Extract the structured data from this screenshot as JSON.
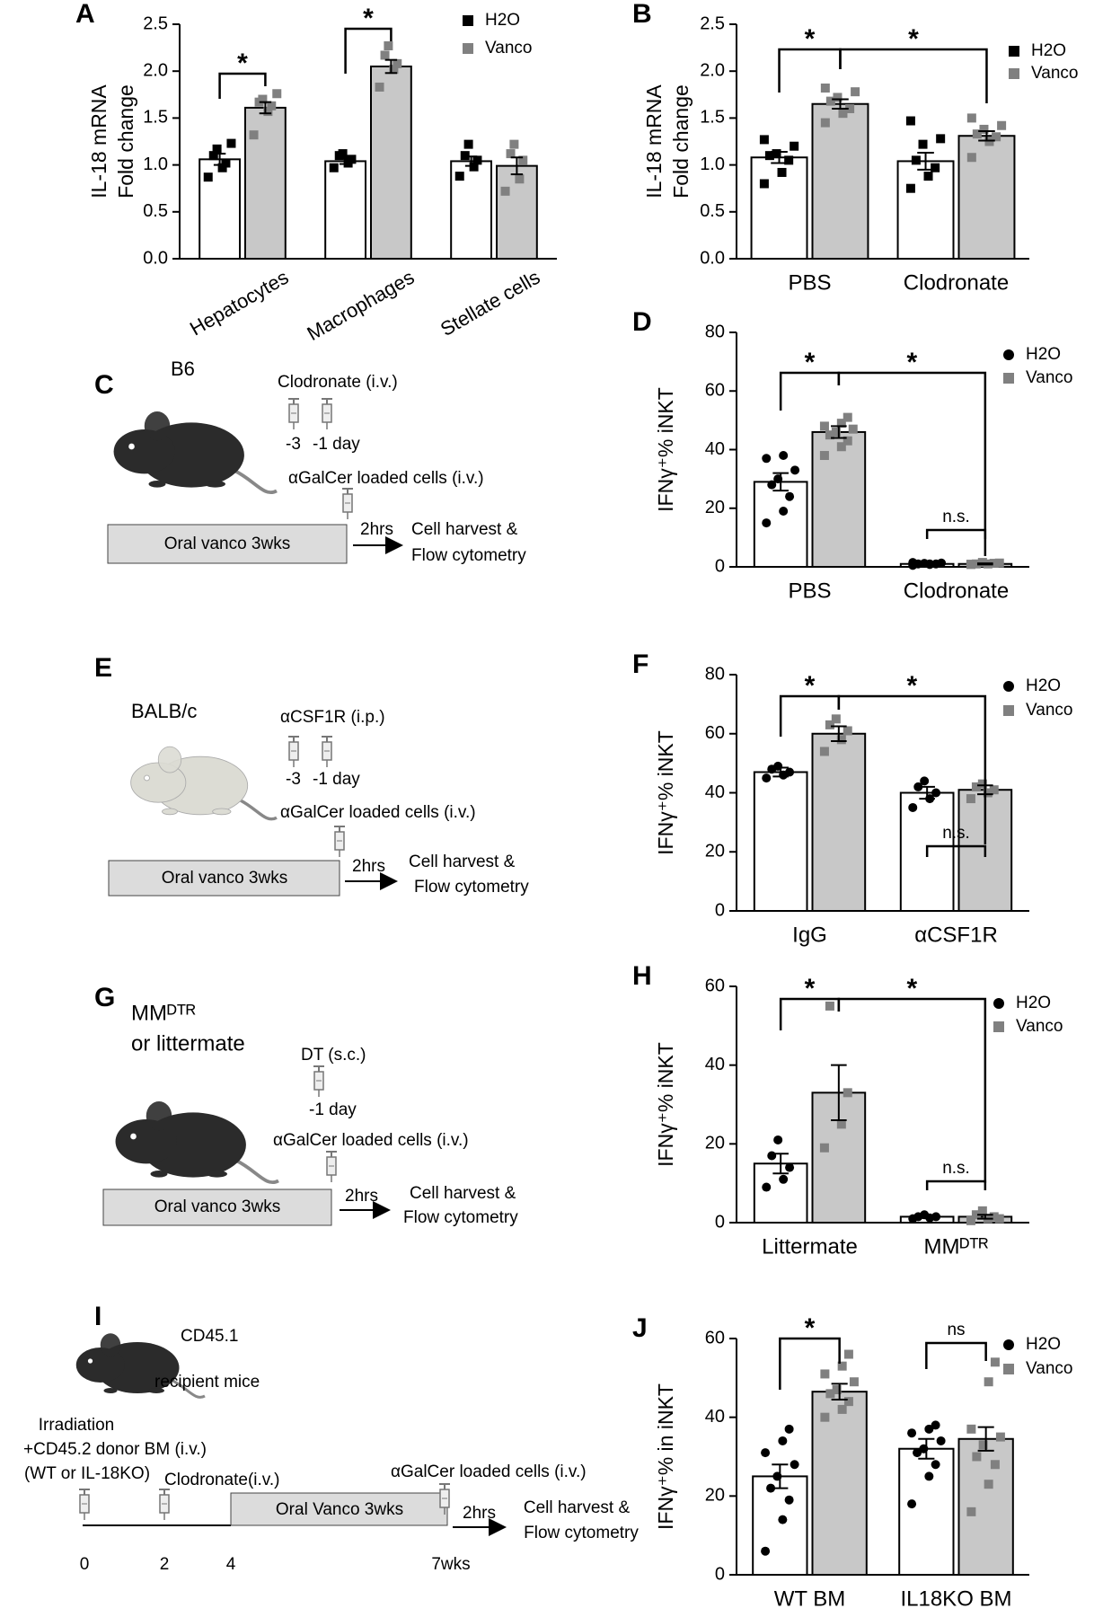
{
  "chart_data": [
    {
      "type": "bar",
      "panel": "A",
      "ylabel": [
        "IL-18 mRNA",
        "Fold change"
      ],
      "categories": [
        "Hepatocytes",
        "Macrophages",
        "Stellate cells"
      ],
      "series": [
        {
          "name": "H2O",
          "color": "#000000",
          "bar_color": "#ffffff",
          "marker": "square",
          "values": [
            1.06,
            1.04,
            1.04
          ],
          "errors": [
            0.06,
            0.03,
            0.05
          ],
          "points": [
            [
              0.87,
              0.97,
              1.02,
              1.1,
              1.17,
              1.23
            ],
            [
              0.97,
              1.02,
              1.06,
              1.1,
              1.12
            ],
            [
              0.88,
              0.98,
              1.05,
              1.1,
              1.22
            ]
          ]
        },
        {
          "name": "Vanco",
          "color": "#808080",
          "bar_color": "#c8c8c8",
          "marker": "square",
          "values": [
            1.61,
            2.05,
            0.99
          ],
          "errors": [
            0.06,
            0.07,
            0.09
          ],
          "points": [
            [
              1.32,
              1.57,
              1.63,
              1.67,
              1.7,
              1.76
            ],
            [
              1.83,
              2.02,
              2.08,
              2.17,
              2.27
            ],
            [
              0.72,
              0.85,
              1.05,
              1.12,
              1.22
            ]
          ]
        }
      ],
      "ylim": [
        0,
        2.5
      ],
      "yticks": [
        {
          "value": 0,
          "label": "0.0"
        },
        0.5,
        {
          "value": 1,
          "label": "1.0"
        },
        1.5,
        {
          "value": 2,
          "label": "2.0"
        },
        2.5
      ],
      "annotations": [
        "*",
        "*"
      ],
      "legend": "top-right"
    },
    {
      "type": "bar",
      "panel": "B",
      "ylabel": [
        "IL-18 mRNA",
        "Fold change"
      ],
      "categories": [
        "PBS",
        "Clodronate"
      ],
      "series": [
        {
          "name": "H2O",
          "color": "#000000",
          "bar_color": "#ffffff",
          "marker": "square",
          "values": [
            1.08,
            1.04
          ],
          "errors": [
            0.06,
            0.09
          ],
          "points": [
            [
              0.8,
              0.92,
              1.05,
              1.1,
              1.12,
              1.2,
              1.27
            ],
            [
              0.75,
              0.88,
              0.97,
              1.05,
              1.22,
              1.28,
              1.47
            ]
          ]
        },
        {
          "name": "Vanco",
          "color": "#808080",
          "bar_color": "#c8c8c8",
          "marker": "square",
          "values": [
            1.65,
            1.31
          ],
          "errors": [
            0.05,
            0.05
          ],
          "points": [
            [
              1.45,
              1.55,
              1.6,
              1.68,
              1.72,
              1.78,
              1.82
            ],
            [
              1.08,
              1.25,
              1.3,
              1.33,
              1.38,
              1.42,
              1.5
            ]
          ]
        }
      ],
      "ylim": [
        0,
        2.5
      ],
      "yticks": [
        {
          "value": 0,
          "label": "0.0"
        },
        0.5,
        {
          "value": 1,
          "label": "1.0"
        },
        1.5,
        {
          "value": 2,
          "label": "2.0"
        },
        2.5
      ],
      "annotations": [
        "*",
        "*"
      ],
      "legend": "top-right"
    },
    {
      "type": "bar",
      "panel": "D",
      "ylabel": [
        "IFNγ⁺% iNKT"
      ],
      "categories": [
        "PBS",
        "Clodronate"
      ],
      "series": [
        {
          "name": "H2O",
          "color": "#000000",
          "bar_color": "#ffffff",
          "marker": "circle",
          "values": [
            29,
            1
          ],
          "errors": [
            3,
            0.2
          ],
          "points": [
            [
              15,
              19,
              24,
              28,
              30,
              33,
              37,
              38
            ],
            [
              0.5,
              0.8,
              1,
              1,
              1.2,
              1.3,
              1.5,
              1
            ]
          ]
        },
        {
          "name": "Vanco",
          "color": "#808080",
          "bar_color": "#c8c8c8",
          "marker": "square",
          "values": [
            46,
            1
          ],
          "errors": [
            2,
            0.2
          ],
          "points": [
            [
              38,
              41,
              43,
              45,
              46,
              47,
              48,
              49,
              51
            ],
            [
              0.8,
              1,
              1.2,
              1,
              1.5,
              1.3,
              0.9
            ]
          ]
        }
      ],
      "ylim": [
        0,
        80
      ],
      "yticks": [
        0,
        20,
        40,
        60,
        80
      ],
      "annotations": [
        "*",
        "*",
        "n.s."
      ],
      "legend": "top-right"
    },
    {
      "type": "bar",
      "panel": "F",
      "ylabel": [
        "IFNγ⁺% iNKT"
      ],
      "categories": [
        "IgG",
        "αCSF1R"
      ],
      "series": [
        {
          "name": "H2O",
          "color": "#000000",
          "bar_color": "#ffffff",
          "marker": "circle",
          "values": [
            47,
            40
          ],
          "errors": [
            1.5,
            2
          ],
          "points": [
            [
              45,
              46,
              47,
              48,
              49
            ],
            [
              35,
              38,
              40,
              42,
              44
            ]
          ]
        },
        {
          "name": "Vanco",
          "color": "#808080",
          "bar_color": "#c8c8c8",
          "marker": "square",
          "values": [
            60,
            41
          ],
          "errors": [
            2.5,
            1.5
          ],
          "points": [
            [
              54,
              58,
              61,
              63,
              65
            ],
            [
              38,
              40,
              41,
              42,
              43
            ]
          ]
        }
      ],
      "ylim": [
        0,
        80
      ],
      "yticks": [
        0,
        20,
        40,
        60,
        80
      ],
      "annotations": [
        "*",
        "*",
        "n.s."
      ],
      "legend": "top-right"
    },
    {
      "type": "bar",
      "panel": "H",
      "ylabel": [
        "IFNγ⁺% iNKT"
      ],
      "categories": [
        "Littermate",
        "MMᴰᵀᴿ"
      ],
      "series": [
        {
          "name": "H2O",
          "color": "#000000",
          "bar_color": "#ffffff",
          "marker": "circle",
          "values": [
            15,
            1.5
          ],
          "errors": [
            2.5,
            0.3
          ],
          "points": [
            [
              9,
              11,
              14,
              17,
              21
            ],
            [
              1,
              1.2,
              1.5,
              1.5,
              2
            ]
          ]
        },
        {
          "name": "Vanco",
          "color": "#808080",
          "bar_color": "#c8c8c8",
          "marker": "square",
          "values": [
            33,
            1.5
          ],
          "errors": [
            7,
            0.5
          ],
          "points": [
            [
              19,
              25,
              33,
              55
            ],
            [
              0.5,
              1,
              1.5,
              2,
              3,
              1
            ]
          ]
        }
      ],
      "ylim": [
        0,
        60
      ],
      "yticks": [
        0,
        20,
        40,
        60
      ],
      "annotations": [
        "*",
        "*",
        "n.s."
      ],
      "legend": "top-right"
    },
    {
      "type": "bar",
      "panel": "J",
      "ylabel": [
        "IFNγ⁺% in iNKT"
      ],
      "categories": [
        "WT BM",
        "IL18KO BM"
      ],
      "series": [
        {
          "name": "H2O",
          "color": "#000000",
          "bar_color": "#ffffff",
          "marker": "circle",
          "values": [
            25,
            32
          ],
          "errors": [
            3,
            2.5
          ],
          "points": [
            [
              6,
              14,
              19,
              22,
              25,
              28,
              31,
              34,
              37
            ],
            [
              18,
              25,
              28,
              31,
              32,
              34,
              36,
              37,
              38
            ]
          ]
        },
        {
          "name": "Vanco",
          "color": "#808080",
          "bar_color": "#c8c8c8",
          "marker": "square",
          "values": [
            46.5,
            34.5
          ],
          "errors": [
            2,
            3
          ],
          "points": [
            [
              40,
              42,
              44,
              46,
              47,
              49,
              51,
              53,
              56
            ],
            [
              16,
              23,
              28,
              30,
              33,
              35,
              37,
              49,
              54
            ]
          ]
        }
      ],
      "ylim": [
        0,
        60
      ],
      "yticks": [
        0,
        20,
        40,
        60
      ],
      "annotations": [
        "*",
        "ns"
      ],
      "legend": "top-right"
    }
  ],
  "diagrams": [
    {
      "panel": "C",
      "strain": "B6",
      "treatment": "Clodronate (i.v.)",
      "day_a": "-3",
      "day_b": "-1 day",
      "injection": "αGalCer loaded cells (i.v.)",
      "box": "Oral vanco 3wks",
      "wait": "2hrs",
      "readout_1": "Cell harvest &",
      "readout_2": "Flow cytometry"
    },
    {
      "panel": "E",
      "strain": "BALB/c",
      "treatment": "αCSF1R (i.p.)",
      "day_a": "-3",
      "day_b": "-1 day",
      "injection": "αGalCer loaded cells (i.v.)",
      "box": "Oral vanco 3wks",
      "wait": "2hrs",
      "readout_1": "Cell harvest &",
      "readout_2": "Flow cytometry"
    },
    {
      "panel": "G",
      "strain": "MMᴰᵀᴿ",
      "strain_2": "or littermate",
      "treatment": "DT (s.c.)",
      "day_b": "-1 day",
      "injection": "αGalCer loaded cells (i.v.)",
      "box": "Oral vanco 3wks",
      "wait": "2hrs",
      "readout_1": "Cell harvest &",
      "readout_2": "Flow cytometry"
    },
    {
      "panel": "I",
      "recipient_1": "CD45.1",
      "recipient_2": "recipient mice",
      "step_1": "Irradiation",
      "step_2": "+CD45.2 donor BM (i.v.)",
      "step_3": "(WT or IL-18KO)",
      "treatment": "Clodronate(i.v.)",
      "box": "Oral Vanco 3wks",
      "injection": "αGalCer loaded cells (i.v.)",
      "wait": "2hrs",
      "readout_1": "Cell harvest &",
      "readout_2": "Flow cytometry",
      "t0": "0",
      "t1": "2",
      "t2": "4",
      "t3": "7wks"
    }
  ]
}
